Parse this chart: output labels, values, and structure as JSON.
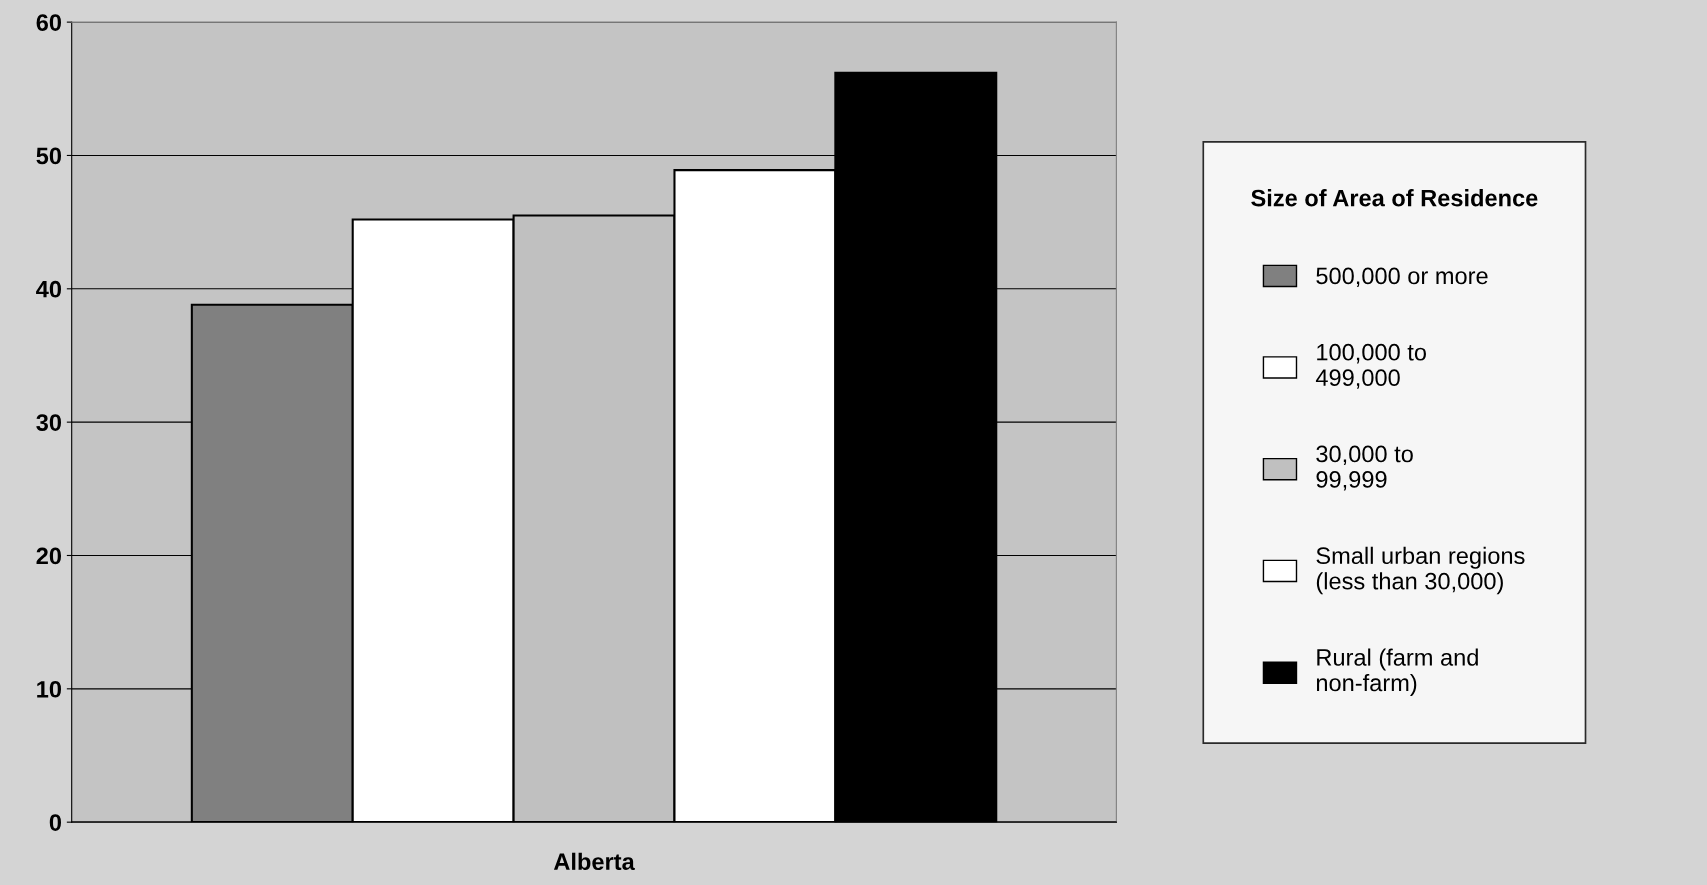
{
  "chart_data": {
    "type": "bar",
    "categories": [
      "Alberta"
    ],
    "series": [
      {
        "name": "500,000 or more",
        "color": "#808080",
        "values": [
          38.8
        ]
      },
      {
        "name": "100,000 to\n499,000",
        "color": "#ffffff",
        "values": [
          45.2
        ]
      },
      {
        "name": "30,000 to\n99,999",
        "color": "#c0c0c0",
        "values": [
          45.5
        ]
      },
      {
        "name": "Small urban regions\n(less than 30,000)",
        "color": "#ffffff",
        "values": [
          48.9
        ]
      },
      {
        "name": "Rural (farm and\nnon-farm)",
        "color": "#000000",
        "values": [
          56.2
        ]
      }
    ],
    "legend_title": "Size of Area of Residence",
    "legend": "right",
    "ylim": [
      0,
      60
    ],
    "yticks": [
      0,
      10,
      20,
      30,
      40,
      50,
      60
    ],
    "grid": "y"
  }
}
